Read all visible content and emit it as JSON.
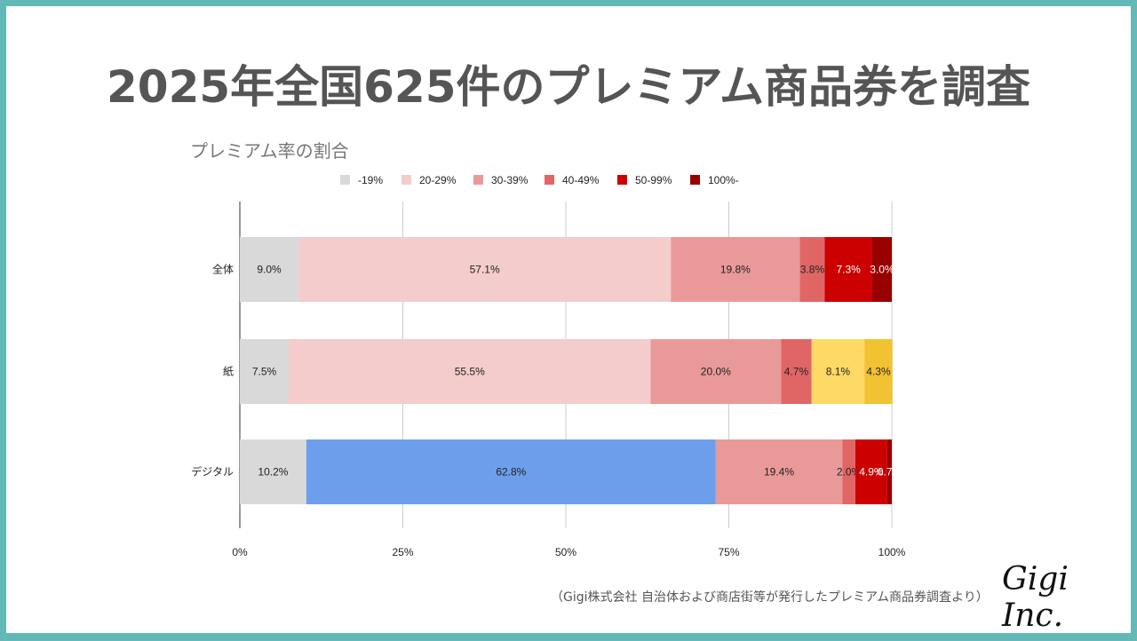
{
  "title": "2025年全国625件のプレミアム商品券を調査",
  "footer": "（Gigi株式会社 自治体および商店街等が発行したプレミアム商品券調査より）",
  "logo": "Gigi Inc.",
  "chart_data": {
    "type": "bar",
    "orientation": "horizontal",
    "stacked": "percent",
    "title": "プレミアム率の割合",
    "categories": [
      "全体",
      "紙",
      "デジタル"
    ],
    "legend_position": "top",
    "grid": true,
    "xlim": [
      0,
      100
    ],
    "x_ticks": [
      "0%",
      "25%",
      "50%",
      "75%",
      "100%"
    ],
    "series": [
      {
        "name": "-19%",
        "color": "#d9d9d9",
        "values": [
          9.0,
          7.5,
          10.2
        ],
        "labels": [
          "9.0%",
          "7.5%",
          "10.2%"
        ],
        "point_colors": [
          "#d9d9d9",
          "#d9d9d9",
          "#d9d9d9"
        ]
      },
      {
        "name": "20-29%",
        "color": "#f4cccc",
        "values": [
          57.1,
          55.5,
          62.8
        ],
        "labels": [
          "57.1%",
          "55.5%",
          "62.8%"
        ],
        "point_colors": [
          "#f4cccc",
          "#f4cccc",
          "#6d9eeb"
        ]
      },
      {
        "name": "30-39%",
        "color": "#ea9999",
        "values": [
          19.8,
          20.0,
          19.4
        ],
        "labels": [
          "19.8%",
          "20.0%",
          "19.4%"
        ],
        "point_colors": [
          "#ea9999",
          "#ea9999",
          "#ea9999"
        ]
      },
      {
        "name": "40-49%",
        "color": "#e06666",
        "values": [
          3.8,
          4.7,
          2.0
        ],
        "labels": [
          "3.8%",
          "4.7%",
          "2.0%"
        ],
        "point_colors": [
          "#e06666",
          "#e06666",
          "#e06666"
        ]
      },
      {
        "name": "50-99%",
        "color": "#cc0000",
        "values": [
          7.3,
          8.1,
          4.9
        ],
        "labels": [
          "7.3%",
          "8.1%",
          "4.9%"
        ],
        "point_colors": [
          "#cc0000",
          "#ffd966",
          "#cc0000"
        ]
      },
      {
        "name": "100%-",
        "color": "#990000",
        "values": [
          3.0,
          4.3,
          0.7
        ],
        "labels": [
          "3.0%",
          "4.3%",
          "0.7%"
        ],
        "point_colors": [
          "#990000",
          "#f1c232",
          "#990000"
        ]
      }
    ]
  }
}
